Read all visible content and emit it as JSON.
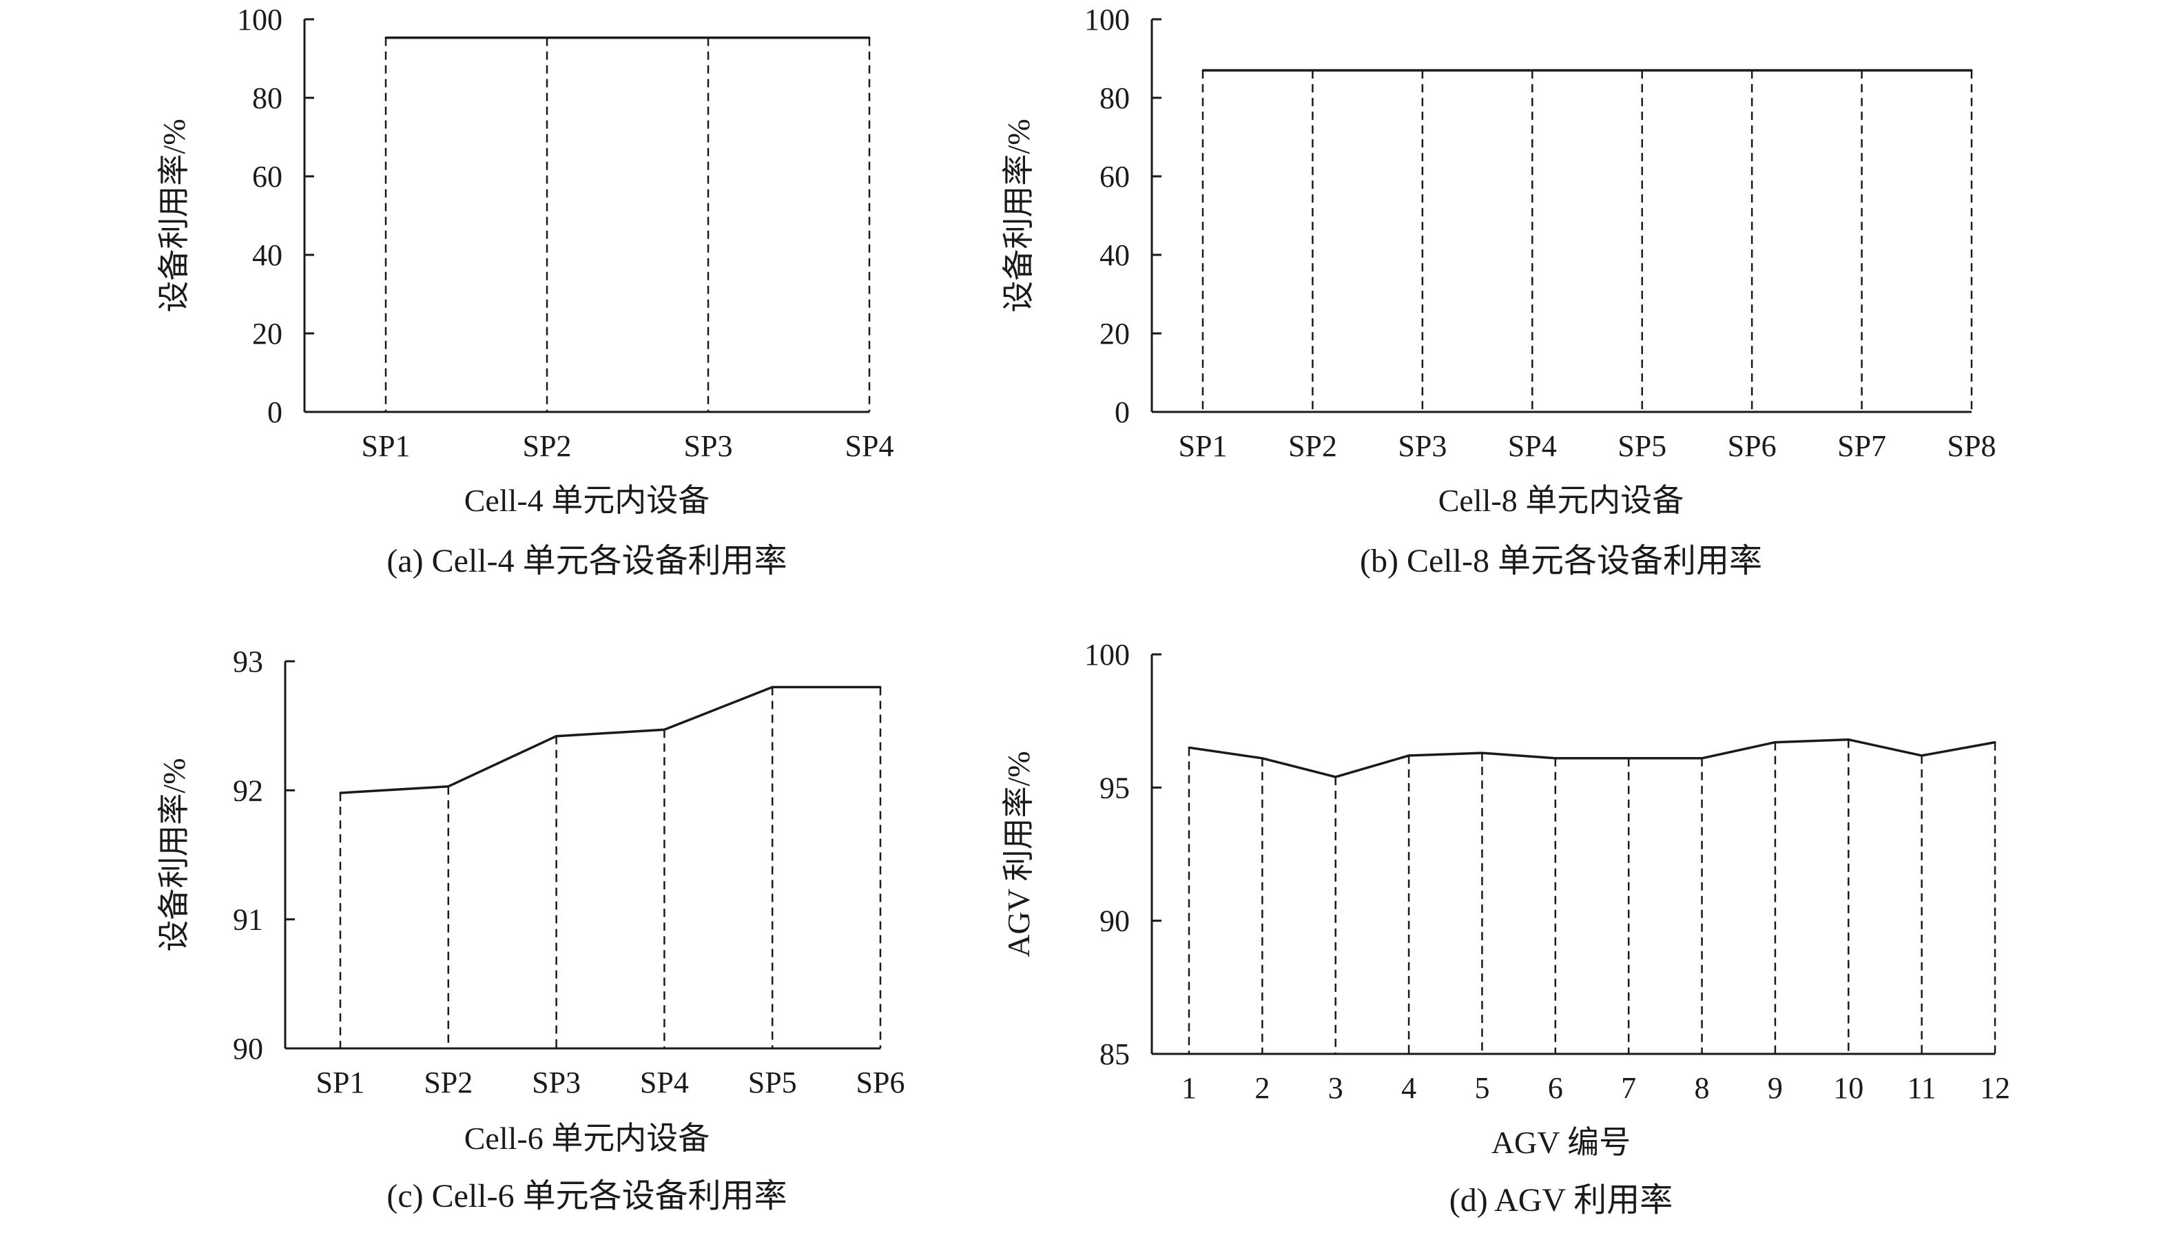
{
  "chart_data": [
    {
      "type": "line",
      "caption": "(a) Cell-4 单元各设备利用率",
      "xlabel": "Cell-4 单元内设备",
      "ylabel": "设备利用率/%",
      "categories": [
        "SP1",
        "SP2",
        "SP3",
        "SP4"
      ],
      "values": [
        95.3,
        95.3,
        95.3,
        95.3
      ],
      "ylim": [
        0,
        100
      ],
      "yticks": [
        0,
        20,
        40,
        60,
        80,
        100
      ],
      "drop_lines": "dashed",
      "grid": false
    },
    {
      "type": "line",
      "caption": "(b) Cell-8 单元各设备利用率",
      "xlabel": "Cell-8 单元内设备",
      "ylabel": "设备利用率/%",
      "categories": [
        "SP1",
        "SP2",
        "SP3",
        "SP4",
        "SP5",
        "SP6",
        "SP7",
        "SP8"
      ],
      "values": [
        87,
        87,
        87,
        87,
        87,
        87,
        87,
        87
      ],
      "ylim": [
        0,
        100
      ],
      "yticks": [
        0,
        20,
        40,
        60,
        80,
        100
      ],
      "drop_lines": "dashed",
      "grid": false
    },
    {
      "type": "line",
      "caption": "(c) Cell-6 单元各设备利用率",
      "xlabel": "Cell-6 单元内设备",
      "ylabel": "设备利用率/%",
      "categories": [
        "SP1",
        "SP2",
        "SP3",
        "SP4",
        "SP5",
        "SP6"
      ],
      "values": [
        91.98,
        92.03,
        92.42,
        92.47,
        92.8,
        92.8
      ],
      "ylim": [
        90,
        93
      ],
      "yticks": [
        90,
        91,
        92,
        93
      ],
      "drop_lines": "dashed",
      "grid": false
    },
    {
      "type": "line",
      "caption": "(d) AGV 利用率",
      "xlabel": "AGV 编号",
      "ylabel": "AGV 利用率/%",
      "categories": [
        "1",
        "2",
        "3",
        "4",
        "5",
        "6",
        "7",
        "8",
        "9",
        "10",
        "11",
        "12"
      ],
      "values": [
        96.5,
        96.1,
        95.4,
        96.2,
        96.3,
        96.1,
        96.1,
        96.1,
        96.7,
        96.8,
        96.2,
        96.7
      ],
      "ylim": [
        85,
        100
      ],
      "yticks": [
        85,
        90,
        95,
        100
      ],
      "drop_lines": "dashed",
      "grid": false
    }
  ]
}
